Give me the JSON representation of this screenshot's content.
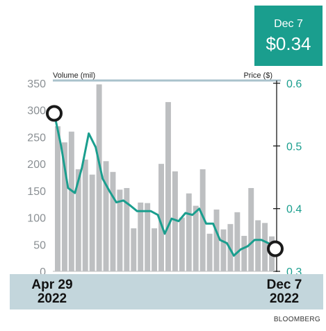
{
  "callout": {
    "date": "Dec 7",
    "price": "$0.34"
  },
  "source": "BLOOMBERG",
  "chart_data": {
    "type": "bar+line",
    "left_axis": {
      "label": "Volume (mil)",
      "ticks": [
        0,
        50,
        100,
        150,
        200,
        250,
        300,
        350
      ],
      "range": [
        0,
        350
      ]
    },
    "right_axis": {
      "label": "Price ($)",
      "ticks": [
        "0.3",
        "0.4",
        "0.5",
        "0.6"
      ],
      "range": [
        0.3,
        0.6
      ]
    },
    "x_labels": [
      {
        "line1": "Apr 29",
        "line2": "2022"
      },
      {
        "line1": "Dec 7",
        "line2": "2022"
      }
    ],
    "volume": [
      270,
      240,
      260,
      190,
      208,
      180,
      348,
      205,
      185,
      152,
      155,
      80,
      128,
      127,
      80,
      200,
      315,
      186,
      100,
      145,
      122,
      190,
      70,
      115,
      78,
      88,
      110,
      66,
      155,
      95,
      90,
      65
    ],
    "price": [
      0.552,
      0.5,
      0.433,
      0.425,
      0.465,
      0.52,
      0.498,
      0.448,
      0.428,
      0.41,
      0.413,
      0.405,
      0.396,
      0.396,
      0.396,
      0.39,
      0.36,
      0.384,
      0.38,
      0.393,
      0.39,
      0.4,
      0.376,
      0.376,
      0.35,
      0.345,
      0.325,
      0.335,
      0.34,
      0.35,
      0.35,
      0.345,
      0.336
    ]
  }
}
